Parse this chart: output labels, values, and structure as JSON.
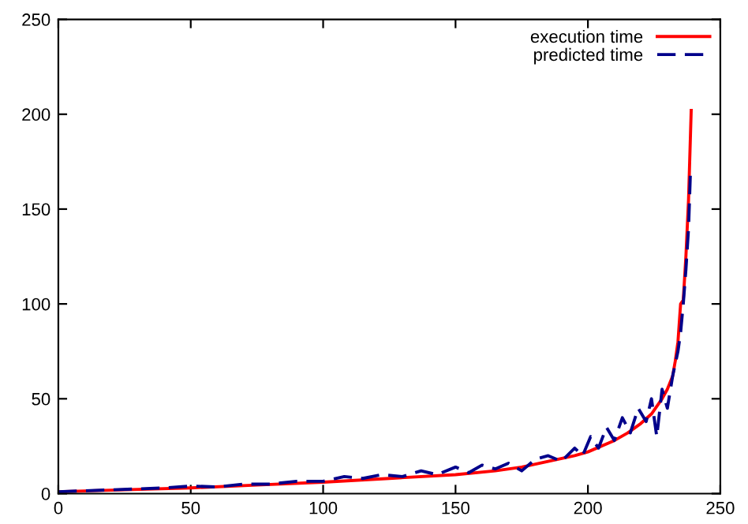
{
  "chart_data": {
    "type": "line",
    "xlim": [
      0,
      250
    ],
    "ylim": [
      0,
      250
    ],
    "xticks": [
      0,
      50,
      100,
      150,
      200,
      250
    ],
    "yticks": [
      0,
      50,
      100,
      150,
      200,
      250
    ],
    "grid": false,
    "legend": "top right",
    "series": [
      {
        "name": "execution time",
        "color": "#ff0000",
        "line_style": "solid",
        "x": [
          0,
          25,
          50,
          75,
          100,
          125,
          150,
          165,
          175,
          185,
          195,
          200,
          205,
          210,
          215,
          220,
          224,
          228,
          230,
          232,
          233,
          234,
          235,
          236,
          237,
          238,
          239
        ],
        "values": [
          1,
          2,
          3,
          4.5,
          6,
          8,
          10,
          12,
          14,
          17,
          20,
          22,
          25,
          28,
          32,
          37,
          42,
          50,
          55,
          62,
          70,
          80,
          100,
          102,
          125,
          155,
          202
        ]
      },
      {
        "name": "predicted time",
        "color": "#00008b",
        "line_style": "dashed",
        "x": [
          0,
          10,
          20,
          30,
          40,
          50,
          60,
          70,
          80,
          90,
          100,
          108,
          115,
          122,
          130,
          137,
          143,
          150,
          155,
          160,
          165,
          170,
          175,
          180,
          185,
          190,
          195,
          198,
          201,
          204,
          207,
          210,
          213,
          216,
          219,
          222,
          224,
          226,
          228,
          230,
          232,
          234,
          235,
          236,
          237,
          238,
          238.7
        ],
        "values": [
          1,
          1.5,
          2,
          2.5,
          3,
          4,
          3.5,
          5,
          5,
          6.5,
          6.5,
          9,
          8,
          10,
          9,
          12,
          10,
          14,
          11,
          15,
          13,
          16,
          12,
          18,
          20,
          17,
          24,
          20,
          30,
          24,
          35,
          28,
          40,
          32,
          45,
          38,
          50,
          30,
          55,
          45,
          62,
          75,
          85,
          100,
          118,
          140,
          169
        ]
      }
    ]
  }
}
